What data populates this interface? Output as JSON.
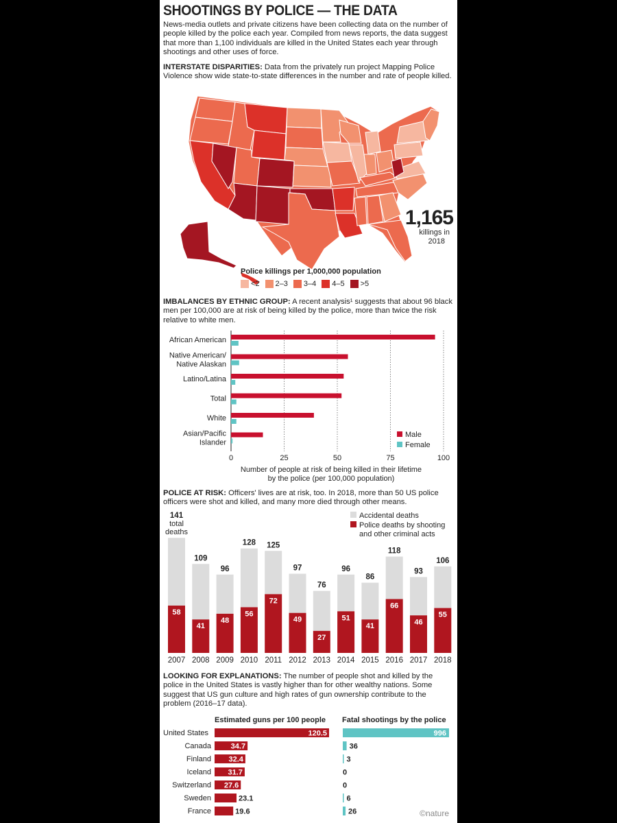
{
  "header": {
    "title": "SHOOTINGS BY POLICE — THE DATA",
    "intro": "News-media outlets and private citizens have been collecting data on the number of people killed by the police each year. Compiled from news reports, the data suggest that more than 1,100 individuals are killed in the United States each year through shootings and other uses of force."
  },
  "section1": {
    "heading": "INTERSTATE DISPARITIES:",
    "text": " Data from the privately run project Mapping Police Violence show wide state-to-state differences in the number and rate of people killed.",
    "big_number": "1,165",
    "big_caption_1": "killings in",
    "big_caption_2": "2018",
    "legend_title": "Police killings per 1,000,000 population",
    "legend": [
      {
        "label": "<2",
        "color": "#f6b7a0"
      },
      {
        "label": "2–3",
        "color": "#f2916f"
      },
      {
        "label": "3–4",
        "color": "#ec6a4e"
      },
      {
        "label": "4–5",
        "color": "#dc3129"
      },
      {
        "label": ">5",
        "color": "#a41622"
      }
    ]
  },
  "section2": {
    "heading": "IMBALANCES BY ETHNIC GROUP:",
    "text": " A recent analysis¹ suggests that about 96 black men per 100,000 are at risk of being killed by the police, more than twice the risk relative to white men.",
    "xlabel_1": "Number of people at risk of being killed in their lifetime",
    "xlabel_2": "by the police (per 100,000 population)",
    "legend_male": "Male",
    "legend_female": "Female"
  },
  "section3": {
    "heading": "POLICE AT RISK:",
    "text": " Officers' lives are at risk, too. In 2018, more than 50 US police officers were shot and killed, and many more died through other means.",
    "total_label_1": "total",
    "total_label_2": "deaths",
    "legend_accidental": "Accidental deaths",
    "legend_police_1": "Police deaths by shooting",
    "legend_police_2": "and other criminal acts"
  },
  "section4": {
    "heading": "LOOKING FOR EXPLANATIONS:",
    "text": " The number of people shot and killed by the police in the United States is vastly higher than for other wealthy nations. Some suggest that US gun culture and high rates of gun ownership contribute to the problem (2016–17 data).",
    "guns_title": "Estimated guns per 100 people",
    "shootings_title": "Fatal shootings by the police"
  },
  "footer": {
    "brand": "©nature"
  },
  "chart_data": [
    {
      "type": "map",
      "title": "Police killings per 1,000,000 population",
      "annotation": "1,165 killings in 2018",
      "bins": [
        "<2",
        "2–3",
        "3–4",
        "4–5",
        ">5"
      ]
    },
    {
      "type": "bar",
      "orientation": "horizontal",
      "categories": [
        "African American",
        "Native American/ Native Alaskan",
        "Latino/Latina",
        "Total",
        "White",
        "Asian/Pacific Islander"
      ],
      "category_lines": [
        [
          "African American"
        ],
        [
          "Native American/",
          "Native Alaskan"
        ],
        [
          "Latino/Latina"
        ],
        [
          "Total"
        ],
        [
          "White"
        ],
        [
          "Asian/Pacific",
          "Islander"
        ]
      ],
      "series": [
        {
          "name": "Male",
          "color": "#c8102e",
          "values": [
            96,
            55,
            53,
            52,
            39,
            15
          ]
        },
        {
          "name": "Female",
          "color": "#5fc4c4",
          "values": [
            3.5,
            3.8,
            2.0,
            2.5,
            2.5,
            0.7
          ]
        }
      ],
      "xlim": [
        0,
        100
      ],
      "xticks": [
        0,
        25,
        50,
        75,
        100
      ],
      "xlabel": "Number of people at risk of being killed in their lifetime by the police (per 100,000 population)",
      "grid": true,
      "legend": "bottom-right"
    },
    {
      "type": "bar",
      "stacked": true,
      "categories": [
        "2007",
        "2008",
        "2009",
        "2010",
        "2011",
        "2012",
        "2013",
        "2014",
        "2015",
        "2016",
        "2017",
        "2018"
      ],
      "series": [
        {
          "name": "Police deaths by shooting and other criminal acts",
          "color": "#b0161f",
          "values": [
            58,
            41,
            48,
            56,
            72,
            49,
            27,
            51,
            41,
            66,
            46,
            55
          ]
        },
        {
          "name": "Accidental deaths",
          "color": "#dcdcdc",
          "values": [
            83,
            68,
            48,
            72,
            53,
            48,
            49,
            45,
            45,
            52,
            47,
            51
          ]
        }
      ],
      "totals": [
        141,
        109,
        96,
        128,
        125,
        97,
        76,
        96,
        86,
        118,
        93,
        106
      ],
      "legend": "top-right"
    },
    {
      "type": "bar",
      "orientation": "horizontal",
      "categories": [
        "United States",
        "Canada",
        "Finland",
        "Iceland",
        "Switzerland",
        "Sweden",
        "France"
      ],
      "series": [
        {
          "name": "Estimated guns per 100 people",
          "color": "#b0161f",
          "values": [
            120.5,
            34.7,
            32.4,
            31.7,
            27.6,
            23.1,
            19.6
          ]
        },
        {
          "name": "Fatal shootings by the police",
          "color": "#5fc4c4",
          "values": [
            996,
            36,
            3,
            0,
            0,
            6,
            26
          ]
        }
      ]
    }
  ]
}
